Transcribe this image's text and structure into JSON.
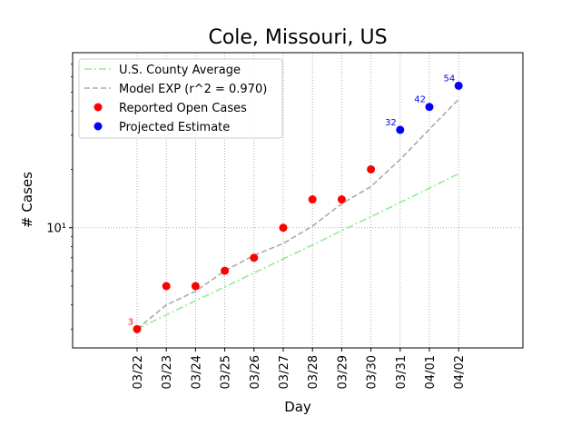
{
  "chart_data": {
    "type": "line",
    "title": "Cole, Missouri, US",
    "xlabel": "Day",
    "ylabel": "# Cases",
    "yscale": "log",
    "ylim": [
      2.4,
      80
    ],
    "y_ticks": [
      {
        "value": 10,
        "label": "10¹"
      }
    ],
    "categories": [
      "03/22",
      "03/23",
      "03/24",
      "03/25",
      "03/26",
      "03/27",
      "03/28",
      "03/29",
      "03/30",
      "03/31",
      "04/01",
      "04/02"
    ],
    "grid": true,
    "legend_position": "top-left",
    "series": [
      {
        "name": "U.S. County Average",
        "style": "dash-dot",
        "color": "#90ee90",
        "values": [
          3.0,
          3.55,
          4.2,
          4.95,
          5.85,
          6.9,
          8.15,
          9.65,
          11.4,
          13.5,
          16.0,
          19.0
        ]
      },
      {
        "name": "Model EXP (r^2 = 0.970)",
        "style": "dashed",
        "color": "#aaaaaa",
        "values": [
          3.0,
          4.0,
          4.7,
          6.0,
          7.2,
          8.3,
          10.2,
          13.3,
          16.3,
          22.5,
          32.2,
          46.0
        ]
      },
      {
        "name": "Reported Open Cases",
        "style": "points",
        "color": "#ff0000",
        "values": [
          3,
          5,
          5,
          6,
          7,
          10,
          14,
          14,
          20,
          null,
          null,
          null
        ]
      },
      {
        "name": "Projected Estimate",
        "style": "points",
        "color": "#0000ff",
        "values": [
          null,
          null,
          null,
          null,
          null,
          null,
          null,
          null,
          null,
          32,
          42,
          54
        ]
      }
    ],
    "annotations": [
      {
        "category": "03/22",
        "value": 3,
        "text": "3",
        "color": "#ff0000"
      },
      {
        "category": "03/31",
        "value": 32,
        "text": "32",
        "color": "#0000ff"
      },
      {
        "category": "04/01",
        "value": 42,
        "text": "42",
        "color": "#0000ff"
      },
      {
        "category": "04/02",
        "value": 54,
        "text": "54",
        "color": "#0000ff"
      }
    ]
  }
}
